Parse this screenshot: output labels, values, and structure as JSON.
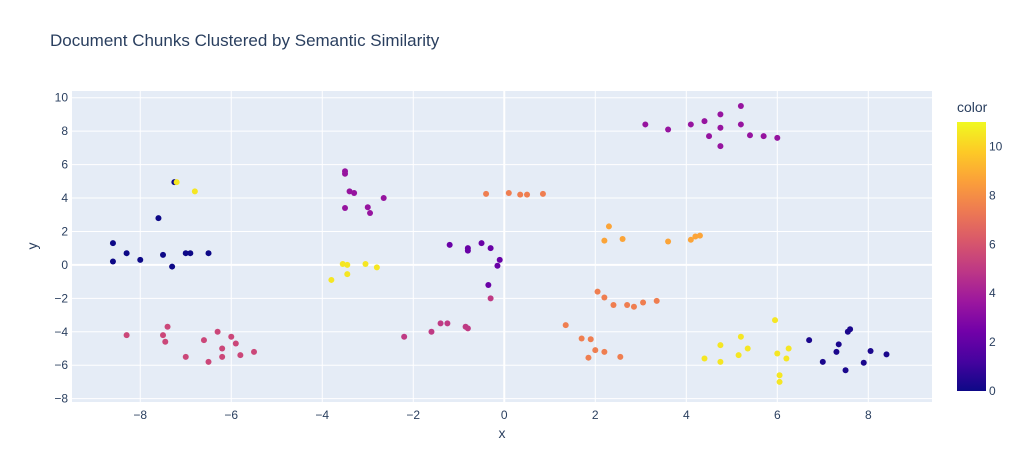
{
  "chart_data": {
    "type": "scatter",
    "title": "Document Chunks Clustered by Semantic Similarity",
    "xlabel": "x",
    "ylabel": "y",
    "xlim": [
      -9.5,
      9.4
    ],
    "ylim": [
      -8.2,
      10.4
    ],
    "x_ticks": [
      -8,
      -6,
      -4,
      -2,
      0,
      2,
      4,
      6,
      8
    ],
    "x_tick_labels": [
      "−8",
      "−6",
      "−4",
      "−2",
      "0",
      "2",
      "4",
      "6",
      "8"
    ],
    "y_ticks": [
      -8,
      -6,
      -4,
      -2,
      0,
      2,
      4,
      6,
      8,
      10
    ],
    "y_tick_labels": [
      "−8",
      "−6",
      "−4",
      "−2",
      "0",
      "2",
      "4",
      "6",
      "8",
      "10"
    ],
    "grid": true,
    "colorbar": {
      "title": "color",
      "range": [
        0,
        11
      ],
      "ticks": [
        0,
        2,
        4,
        6,
        8,
        10
      ],
      "tick_labels": [
        "0",
        "2",
        "4",
        "6",
        "8",
        "10"
      ],
      "colorscale": [
        "#0d0887",
        "#46039f",
        "#7201a8",
        "#9c179e",
        "#bd3786",
        "#d8576b",
        "#ed7953",
        "#fb9f3a",
        "#fdca26",
        "#f0f921"
      ]
    },
    "points": [
      {
        "x": -8.6,
        "y": 1.3,
        "c": 0
      },
      {
        "x": -8.6,
        "y": 0.2,
        "c": 0
      },
      {
        "x": -8.3,
        "y": 0.7,
        "c": 0
      },
      {
        "x": -8.0,
        "y": 0.3,
        "c": 0
      },
      {
        "x": -7.6,
        "y": 2.8,
        "c": 0
      },
      {
        "x": -7.5,
        "y": 0.6,
        "c": 0
      },
      {
        "x": -7.3,
        "y": -0.1,
        "c": 0
      },
      {
        "x": -7.0,
        "y": 0.7,
        "c": 0
      },
      {
        "x": -6.9,
        "y": 0.7,
        "c": 0
      },
      {
        "x": -6.5,
        "y": 0.7,
        "c": 0
      },
      {
        "x": -7.25,
        "y": 4.95,
        "c": 0
      },
      {
        "x": -7.2,
        "y": 4.95,
        "c": 10.5
      },
      {
        "x": -6.8,
        "y": 4.4,
        "c": 10.5
      },
      {
        "x": -8.3,
        "y": -4.2,
        "c": 5.5
      },
      {
        "x": -7.4,
        "y": -3.7,
        "c": 5.5
      },
      {
        "x": -7.5,
        "y": -4.2,
        "c": 5.5
      },
      {
        "x": -7.45,
        "y": -4.6,
        "c": 5.5
      },
      {
        "x": -7.0,
        "y": -5.5,
        "c": 5.5
      },
      {
        "x": -6.6,
        "y": -4.5,
        "c": 5.5
      },
      {
        "x": -6.5,
        "y": -5.8,
        "c": 5.5
      },
      {
        "x": -6.3,
        "y": -4.0,
        "c": 5.5
      },
      {
        "x": -6.2,
        "y": -5.0,
        "c": 5.5
      },
      {
        "x": -6.2,
        "y": -5.5,
        "c": 5.5
      },
      {
        "x": -6.0,
        "y": -4.3,
        "c": 5.5
      },
      {
        "x": -5.9,
        "y": -4.7,
        "c": 5.5
      },
      {
        "x": -5.8,
        "y": -5.4,
        "c": 5.5
      },
      {
        "x": -5.5,
        "y": -5.2,
        "c": 5.5
      },
      {
        "x": -3.5,
        "y": 5.6,
        "c": 3.5
      },
      {
        "x": -3.5,
        "y": 5.45,
        "c": 3.5
      },
      {
        "x": -3.4,
        "y": 4.4,
        "c": 3.5
      },
      {
        "x": -3.3,
        "y": 4.3,
        "c": 3.5
      },
      {
        "x": -3.5,
        "y": 3.4,
        "c": 3.5
      },
      {
        "x": -3.0,
        "y": 3.45,
        "c": 3.5
      },
      {
        "x": -2.95,
        "y": 3.1,
        "c": 3.5
      },
      {
        "x": -2.65,
        "y": 4.0,
        "c": 3.5
      },
      {
        "x": -3.8,
        "y": -0.9,
        "c": 10.5
      },
      {
        "x": -3.55,
        "y": 0.05,
        "c": 10.5
      },
      {
        "x": -3.45,
        "y": 0.0,
        "c": 10.5
      },
      {
        "x": -3.45,
        "y": -0.55,
        "c": 10.5
      },
      {
        "x": -3.05,
        "y": 0.05,
        "c": 10.5
      },
      {
        "x": -2.8,
        "y": -0.15,
        "c": 10.5
      },
      {
        "x": -1.2,
        "y": 1.2,
        "c": 2.2
      },
      {
        "x": -0.8,
        "y": 0.85,
        "c": 2.2
      },
      {
        "x": -0.8,
        "y": 1.0,
        "c": 2.2
      },
      {
        "x": -0.5,
        "y": 1.3,
        "c": 2.2
      },
      {
        "x": -0.3,
        "y": 1.0,
        "c": 2.2
      },
      {
        "x": -0.1,
        "y": 0.3,
        "c": 2.2
      },
      {
        "x": -0.15,
        "y": -0.05,
        "c": 2.2
      },
      {
        "x": -0.35,
        "y": -1.2,
        "c": 2.2
      },
      {
        "x": -0.4,
        "y": 4.25,
        "c": 7.5
      },
      {
        "x": 0.1,
        "y": 4.3,
        "c": 7.5
      },
      {
        "x": 0.35,
        "y": 4.2,
        "c": 7.5
      },
      {
        "x": 0.5,
        "y": 4.2,
        "c": 7.5
      },
      {
        "x": 0.85,
        "y": 4.25,
        "c": 7.5
      },
      {
        "x": -2.2,
        "y": -4.3,
        "c": 5.0
      },
      {
        "x": -1.6,
        "y": -4.0,
        "c": 5.0
      },
      {
        "x": -1.4,
        "y": -3.5,
        "c": 5.0
      },
      {
        "x": -1.25,
        "y": -3.5,
        "c": 5.0
      },
      {
        "x": -0.85,
        "y": -3.7,
        "c": 5.0
      },
      {
        "x": -0.8,
        "y": -3.8,
        "c": 5.0
      },
      {
        "x": -0.3,
        "y": -2.0,
        "c": 5.0
      },
      {
        "x": 3.1,
        "y": 8.4,
        "c": 3.5
      },
      {
        "x": 3.6,
        "y": 8.1,
        "c": 3.5
      },
      {
        "x": 4.1,
        "y": 8.4,
        "c": 3.5
      },
      {
        "x": 4.4,
        "y": 8.6,
        "c": 3.5
      },
      {
        "x": 4.5,
        "y": 7.7,
        "c": 3.5
      },
      {
        "x": 4.75,
        "y": 9.0,
        "c": 3.5
      },
      {
        "x": 4.75,
        "y": 8.2,
        "c": 3.5
      },
      {
        "x": 4.75,
        "y": 7.1,
        "c": 3.5
      },
      {
        "x": 5.2,
        "y": 9.5,
        "c": 3.5
      },
      {
        "x": 5.2,
        "y": 8.4,
        "c": 3.5
      },
      {
        "x": 5.4,
        "y": 7.75,
        "c": 3.5
      },
      {
        "x": 5.7,
        "y": 7.7,
        "c": 3.5
      },
      {
        "x": 6.0,
        "y": 7.6,
        "c": 3.5
      },
      {
        "x": 2.2,
        "y": 1.45,
        "c": 8.7
      },
      {
        "x": 2.3,
        "y": 2.3,
        "c": 8.7
      },
      {
        "x": 2.6,
        "y": 1.55,
        "c": 8.7
      },
      {
        "x": 3.6,
        "y": 1.4,
        "c": 8.7
      },
      {
        "x": 4.1,
        "y": 1.5,
        "c": 8.7
      },
      {
        "x": 4.2,
        "y": 1.7,
        "c": 8.7
      },
      {
        "x": 4.3,
        "y": 1.75,
        "c": 8.7
      },
      {
        "x": 1.35,
        "y": -3.6,
        "c": 7.5
      },
      {
        "x": 1.7,
        "y": -4.4,
        "c": 7.5
      },
      {
        "x": 1.85,
        "y": -5.55,
        "c": 7.5
      },
      {
        "x": 1.9,
        "y": -4.45,
        "c": 7.5
      },
      {
        "x": 2.0,
        "y": -5.1,
        "c": 7.5
      },
      {
        "x": 2.05,
        "y": -1.6,
        "c": 7.5
      },
      {
        "x": 2.2,
        "y": -1.95,
        "c": 7.5
      },
      {
        "x": 2.2,
        "y": -5.2,
        "c": 7.5
      },
      {
        "x": 2.4,
        "y": -2.4,
        "c": 7.5
      },
      {
        "x": 2.55,
        "y": -5.5,
        "c": 7.5
      },
      {
        "x": 2.7,
        "y": -2.4,
        "c": 7.5
      },
      {
        "x": 2.85,
        "y": -2.5,
        "c": 7.5
      },
      {
        "x": 3.05,
        "y": -2.25,
        "c": 7.5
      },
      {
        "x": 3.35,
        "y": -2.15,
        "c": 7.5
      },
      {
        "x": 4.4,
        "y": -5.6,
        "c": 10.5
      },
      {
        "x": 4.75,
        "y": -4.8,
        "c": 10.5
      },
      {
        "x": 4.75,
        "y": -5.8,
        "c": 10.5
      },
      {
        "x": 5.15,
        "y": -5.4,
        "c": 10.5
      },
      {
        "x": 5.2,
        "y": -4.3,
        "c": 10.5
      },
      {
        "x": 5.35,
        "y": -5.0,
        "c": 10.5
      },
      {
        "x": 5.95,
        "y": -3.3,
        "c": 10.5
      },
      {
        "x": 6.0,
        "y": -5.3,
        "c": 10.5
      },
      {
        "x": 6.05,
        "y": -6.6,
        "c": 10.5
      },
      {
        "x": 6.05,
        "y": -7.0,
        "c": 10.5
      },
      {
        "x": 6.2,
        "y": -5.6,
        "c": 10.5
      },
      {
        "x": 6.25,
        "y": -5.0,
        "c": 10.5
      },
      {
        "x": 6.7,
        "y": -4.5,
        "c": 0.3
      },
      {
        "x": 7.0,
        "y": -5.8,
        "c": 0.3
      },
      {
        "x": 7.3,
        "y": -5.2,
        "c": 0.3
      },
      {
        "x": 7.35,
        "y": -4.75,
        "c": 0.3
      },
      {
        "x": 7.5,
        "y": -6.3,
        "c": 0.3
      },
      {
        "x": 7.55,
        "y": -4.0,
        "c": 0.3
      },
      {
        "x": 7.6,
        "y": -3.85,
        "c": 0.3
      },
      {
        "x": 7.9,
        "y": -5.85,
        "c": 0.3
      },
      {
        "x": 8.05,
        "y": -5.15,
        "c": 0.3
      },
      {
        "x": 8.4,
        "y": -5.35,
        "c": 0.3
      }
    ]
  }
}
